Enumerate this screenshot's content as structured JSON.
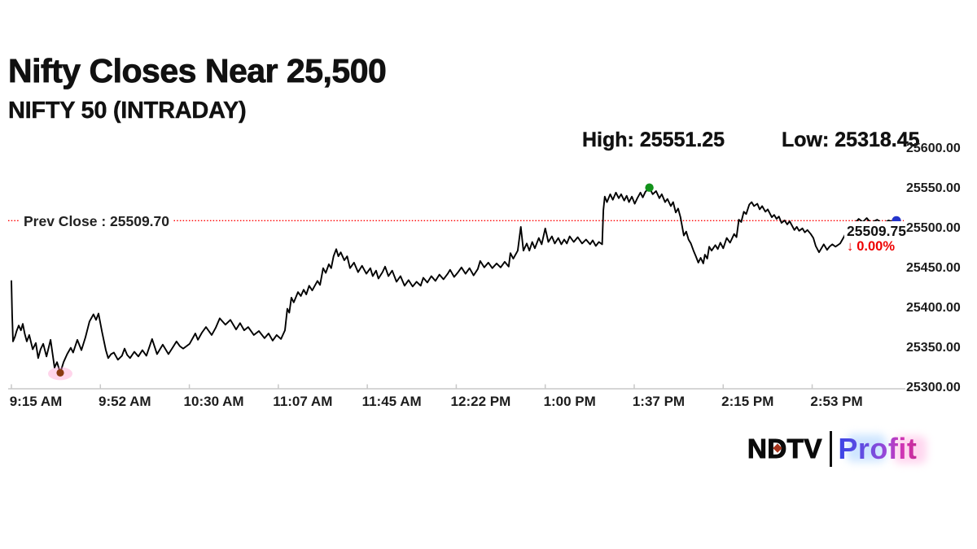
{
  "header": {
    "title": "Nifty Closes Near 25,500",
    "subtitle": "NIFTY 50 (INTRADAY)",
    "high_label": "High: 25551.25",
    "low_label": "Low: 25318.45"
  },
  "footer": {
    "logo_ndtv": "NDTV",
    "logo_profit": "Profit"
  },
  "colors": {
    "price_line": "#000000",
    "prev_close_line": "#ff0000",
    "high_dot": "#12921a",
    "low_dot": "#8a3a10",
    "low_dot_glow": "#ff96cd",
    "close_dot": "#2334cb",
    "change_text": "#ee0000",
    "axis": "#c8c8c8",
    "text": "#111111"
  },
  "chart_data": {
    "type": "line",
    "title": "NIFTY 50 (INTRADAY)",
    "x_axis": {
      "tick_labels": [
        "9:15 AM",
        "9:52 AM",
        "10:30 AM",
        "11:07 AM",
        "11:45 AM",
        "12:22 PM",
        "1:00 PM",
        "1:37 PM",
        "2:15 PM",
        "2:53 PM"
      ],
      "tick_interval_min": 37.5,
      "session_start": "9:15 AM",
      "session_end": "3:30 PM",
      "unit": "minutes from 9:15 AM"
    },
    "y_axis": {
      "tick_labels": [
        "25600.00",
        "25550.00",
        "25500.00",
        "25450.00",
        "25400.00",
        "25350.00",
        "25300.00"
      ],
      "min": 25300,
      "max": 25600,
      "grid": false,
      "side": "right"
    },
    "prev_close": {
      "label": "Prev Close : 25509.70",
      "value": 25509.7
    },
    "high": {
      "value": 25551.25,
      "time_min": 268.9
    },
    "low": {
      "value": 25318.45,
      "time_min": 20.6
    },
    "close": {
      "value": 25509.75,
      "label": "25509.75",
      "change_arrow": "↓",
      "change_pct": "0.00%",
      "time_min": 373
    },
    "series": [
      {
        "name": "NIFTY 50",
        "points": [
          [
            0,
            25434
          ],
          [
            0.3,
            25392
          ],
          [
            0.7,
            25358
          ],
          [
            1.5,
            25364
          ],
          [
            2.2,
            25371
          ],
          [
            3.1,
            25378
          ],
          [
            4,
            25372
          ],
          [
            4.8,
            25380
          ],
          [
            5.6,
            25368
          ],
          [
            6.5,
            25358
          ],
          [
            7.5,
            25366
          ],
          [
            9,
            25348
          ],
          [
            10.3,
            25356
          ],
          [
            11.3,
            25337
          ],
          [
            12.3,
            25348
          ],
          [
            13.4,
            25355
          ],
          [
            14.8,
            25339
          ],
          [
            16.5,
            25360
          ],
          [
            18.2,
            25325
          ],
          [
            19.2,
            25332
          ],
          [
            20.6,
            25318.45
          ],
          [
            22,
            25332
          ],
          [
            23.5,
            25342
          ],
          [
            25,
            25350
          ],
          [
            26,
            25344
          ],
          [
            27.8,
            25360
          ],
          [
            29.5,
            25347
          ],
          [
            31.2,
            25363
          ],
          [
            32.9,
            25383
          ],
          [
            34.6,
            25392
          ],
          [
            35.7,
            25385
          ],
          [
            36.7,
            25393
          ],
          [
            38.2,
            25370
          ],
          [
            39.8,
            25347
          ],
          [
            40.8,
            25337
          ],
          [
            42,
            25342
          ],
          [
            43.2,
            25344
          ],
          [
            44.9,
            25335
          ],
          [
            46.6,
            25340
          ],
          [
            47.7,
            25349
          ],
          [
            48.8,
            25341
          ],
          [
            50,
            25337
          ],
          [
            51.8,
            25345
          ],
          [
            53.5,
            25339
          ],
          [
            55.2,
            25347
          ],
          [
            56.9,
            25340
          ],
          [
            59.3,
            25361
          ],
          [
            61.4,
            25342
          ],
          [
            63.8,
            25354
          ],
          [
            66.2,
            25342
          ],
          [
            67.9,
            25350
          ],
          [
            69.6,
            25358
          ],
          [
            71,
            25352
          ],
          [
            72.4,
            25349
          ],
          [
            75.1,
            25355
          ],
          [
            77.5,
            25368
          ],
          [
            78.6,
            25360
          ],
          [
            80.3,
            25369
          ],
          [
            82,
            25376
          ],
          [
            84.4,
            25366
          ],
          [
            86.1,
            25375
          ],
          [
            87.8,
            25387
          ],
          [
            90.2,
            25379
          ],
          [
            92.3,
            25385
          ],
          [
            94.7,
            25373
          ],
          [
            96.4,
            25381
          ],
          [
            98.1,
            25372
          ],
          [
            99.8,
            25376
          ],
          [
            102.2,
            25366
          ],
          [
            104.3,
            25371
          ],
          [
            106.7,
            25362
          ],
          [
            108.4,
            25368
          ],
          [
            110.1,
            25359
          ],
          [
            111.8,
            25366
          ],
          [
            113.6,
            25361
          ],
          [
            115.3,
            25372
          ],
          [
            116.3,
            25399
          ],
          [
            117.1,
            25394
          ],
          [
            118,
            25413
          ],
          [
            119,
            25407
          ],
          [
            120.8,
            25420
          ],
          [
            122,
            25415
          ],
          [
            123.2,
            25423
          ],
          [
            124.3,
            25417
          ],
          [
            125.5,
            25428
          ],
          [
            126.8,
            25422
          ],
          [
            129,
            25434
          ],
          [
            130.1,
            25429
          ],
          [
            131.4,
            25450
          ],
          [
            132.5,
            25444
          ],
          [
            133.8,
            25455
          ],
          [
            134.8,
            25450
          ],
          [
            135.8,
            25465
          ],
          [
            136.9,
            25474
          ],
          [
            137.8,
            25465
          ],
          [
            138.8,
            25470
          ],
          [
            140.3,
            25460
          ],
          [
            141.5,
            25465
          ],
          [
            142.7,
            25450
          ],
          [
            144.4,
            25457
          ],
          [
            146.1,
            25445
          ],
          [
            147.8,
            25453
          ],
          [
            149.6,
            25443
          ],
          [
            151.3,
            25450
          ],
          [
            152.3,
            25440
          ],
          [
            153.7,
            25447
          ],
          [
            154.7,
            25437
          ],
          [
            156.4,
            25445
          ],
          [
            157.5,
            25452
          ],
          [
            158.9,
            25440
          ],
          [
            160.5,
            25447
          ],
          [
            162.3,
            25433
          ],
          [
            164,
            25440
          ],
          [
            165.7,
            25428
          ],
          [
            167.4,
            25435
          ],
          [
            169.1,
            25427
          ],
          [
            170.8,
            25433
          ],
          [
            172.5,
            25428
          ],
          [
            173.6,
            25438
          ],
          [
            175.3,
            25432
          ],
          [
            177,
            25440
          ],
          [
            178.7,
            25434
          ],
          [
            180.4,
            25442
          ],
          [
            182.1,
            25436
          ],
          [
            183.9,
            25443
          ],
          [
            184.9,
            25448
          ],
          [
            186.6,
            25439
          ],
          [
            188.3,
            25445
          ],
          [
            189.7,
            25451
          ],
          [
            191.4,
            25443
          ],
          [
            193.1,
            25450
          ],
          [
            194.8,
            25441
          ],
          [
            196.6,
            25449
          ],
          [
            197.6,
            25459
          ],
          [
            199.3,
            25451
          ],
          [
            201,
            25457
          ],
          [
            202.7,
            25450
          ],
          [
            204.5,
            25456
          ],
          [
            206.2,
            25451
          ],
          [
            207.9,
            25458
          ],
          [
            209.6,
            25452
          ],
          [
            210.3,
            25469
          ],
          [
            211.5,
            25462
          ],
          [
            213.4,
            25472
          ],
          [
            214.7,
            25502
          ],
          [
            215.8,
            25472
          ],
          [
            217.2,
            25481
          ],
          [
            218.3,
            25472
          ],
          [
            219.5,
            25483
          ],
          [
            220.6,
            25475
          ],
          [
            222.3,
            25488
          ],
          [
            223.5,
            25480
          ],
          [
            225,
            25500
          ],
          [
            226.3,
            25483
          ],
          [
            227.8,
            25490
          ],
          [
            229,
            25481
          ],
          [
            230.5,
            25488
          ],
          [
            231.8,
            25480
          ],
          [
            233,
            25486
          ],
          [
            234.1,
            25481
          ],
          [
            235.3,
            25490
          ],
          [
            237,
            25483
          ],
          [
            238.7,
            25489
          ],
          [
            240.5,
            25481
          ],
          [
            242.2,
            25486
          ],
          [
            243.9,
            25480
          ],
          [
            245,
            25485
          ],
          [
            246.3,
            25478
          ],
          [
            247.6,
            25483
          ],
          [
            249,
            25480
          ],
          [
            249.5,
            25523
          ],
          [
            250.1,
            25540
          ],
          [
            251,
            25533
          ],
          [
            252.4,
            25543
          ],
          [
            253.5,
            25536
          ],
          [
            254.8,
            25545
          ],
          [
            256,
            25538
          ],
          [
            257,
            25543
          ],
          [
            258.3,
            25535
          ],
          [
            259.3,
            25541
          ],
          [
            260.3,
            25533
          ],
          [
            261.5,
            25540
          ],
          [
            262.7,
            25531
          ],
          [
            263.8,
            25538
          ],
          [
            265.1,
            25545
          ],
          [
            266.1,
            25539
          ],
          [
            267.2,
            25546
          ],
          [
            268.9,
            25551.25
          ],
          [
            270.3,
            25543
          ],
          [
            271.7,
            25547
          ],
          [
            273.1,
            25538
          ],
          [
            274.1,
            25543
          ],
          [
            275.5,
            25533
          ],
          [
            276.5,
            25537
          ],
          [
            277.9,
            25528
          ],
          [
            278.9,
            25533
          ],
          [
            280,
            25520
          ],
          [
            281,
            25525
          ],
          [
            282,
            25514
          ],
          [
            283.4,
            25491
          ],
          [
            284.4,
            25496
          ],
          [
            285.4,
            25486
          ],
          [
            286.4,
            25481
          ],
          [
            287.5,
            25472
          ],
          [
            288.5,
            25465
          ],
          [
            289.5,
            25457
          ],
          [
            290.5,
            25463
          ],
          [
            291.6,
            25456
          ],
          [
            292.3,
            25467
          ],
          [
            293.3,
            25462
          ],
          [
            294.1,
            25477
          ],
          [
            295.1,
            25472
          ],
          [
            296.7,
            25479
          ],
          [
            297.7,
            25474
          ],
          [
            298.8,
            25482
          ],
          [
            300,
            25475
          ],
          [
            301.5,
            25488
          ],
          [
            302.9,
            25482
          ],
          [
            304.6,
            25493
          ],
          [
            305.6,
            25489
          ],
          [
            306.6,
            25511
          ],
          [
            307.6,
            25508
          ],
          [
            308.7,
            25521
          ],
          [
            309.7,
            25518
          ],
          [
            311,
            25530
          ],
          [
            312,
            25533
          ],
          [
            313,
            25528
          ],
          [
            314.4,
            25531
          ],
          [
            315.4,
            25524
          ],
          [
            316.4,
            25528
          ],
          [
            317.8,
            25521
          ],
          [
            318.8,
            25524
          ],
          [
            320.5,
            25514
          ],
          [
            321.5,
            25517
          ],
          [
            322.5,
            25512
          ],
          [
            323.5,
            25515
          ],
          [
            324.6,
            25507
          ],
          [
            325.9,
            25510
          ],
          [
            327,
            25505
          ],
          [
            328,
            25509
          ],
          [
            330,
            25498
          ],
          [
            331,
            25502
          ],
          [
            332,
            25497
          ],
          [
            333.4,
            25500
          ],
          [
            334.4,
            25495
          ],
          [
            335.5,
            25498
          ],
          [
            336.9,
            25493
          ],
          [
            338,
            25488
          ],
          [
            339,
            25478
          ],
          [
            340.4,
            25470
          ],
          [
            341.4,
            25475
          ],
          [
            342.4,
            25480
          ],
          [
            343.8,
            25473
          ],
          [
            344.8,
            25477
          ],
          [
            346,
            25480
          ],
          [
            347.3,
            25477
          ],
          [
            348.3,
            25479
          ],
          [
            349.3,
            25481
          ],
          [
            351,
            25490
          ],
          [
            352.5,
            25500
          ],
          [
            353.7,
            25508
          ],
          [
            355,
            25505
          ],
          [
            357.1,
            25512
          ],
          [
            358.8,
            25508
          ],
          [
            360.5,
            25513
          ],
          [
            362.2,
            25507
          ],
          [
            364.9,
            25511
          ],
          [
            367.3,
            25506
          ],
          [
            369.7,
            25510
          ],
          [
            371.7,
            25508
          ],
          [
            373,
            25509.75
          ]
        ]
      }
    ]
  }
}
